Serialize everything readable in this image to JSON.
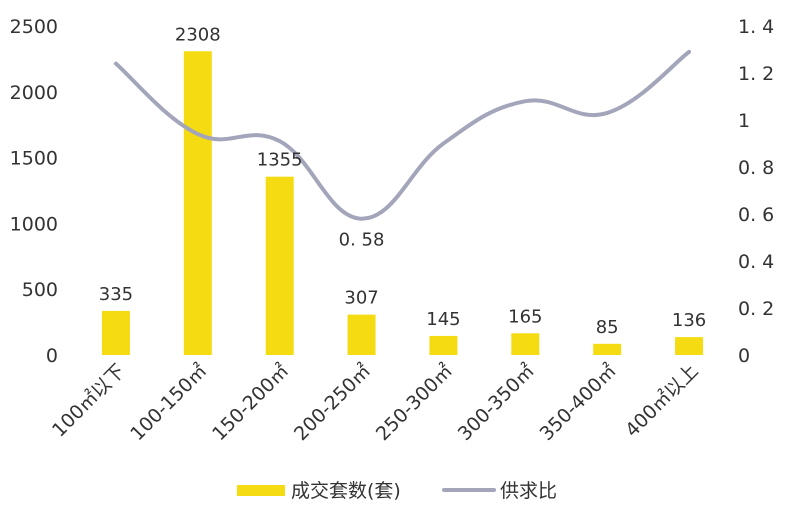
{
  "chart_data": {
    "type": "bar",
    "categories": [
      "100㎡以下",
      "100-150㎡",
      "150-200㎡",
      "200-250㎡",
      "250-300㎡",
      "300-350㎡",
      "350-400㎡",
      "400㎡以上"
    ],
    "series": [
      {
        "name": "成交套数(套)",
        "type": "bar",
        "axis": "left",
        "color": "#F5DC12",
        "values": [
          335,
          2308,
          1355,
          307,
          145,
          165,
          85,
          136
        ],
        "labels": [
          "335",
          "2308",
          "1355",
          "307",
          "145",
          "165",
          "85",
          "136"
        ]
      },
      {
        "name": "供求比",
        "type": "line",
        "axis": "right",
        "color": "#A3A6BA",
        "smooth": true,
        "values": [
          1.24,
          0.94,
          0.91,
          0.58,
          0.9,
          1.08,
          1.03,
          1.29
        ]
      }
    ],
    "annotations": [
      {
        "series": 1,
        "index": 3,
        "text": "0. 58"
      }
    ],
    "y_left": {
      "ylim": [
        0,
        2500
      ],
      "ticks": [
        0,
        500,
        1000,
        1500,
        2000,
        2500
      ],
      "tick_labels": [
        "0",
        "500",
        "1000",
        "1500",
        "2000",
        "2500"
      ]
    },
    "y_right": {
      "ylim": [
        0,
        1.4
      ],
      "ticks": [
        0,
        0.2,
        0.4,
        0.6,
        0.8,
        1,
        1.2,
        1.4
      ],
      "tick_labels": [
        "0",
        "0. 2",
        "0. 4",
        "0. 6",
        "0. 8",
        "1",
        "1. 2",
        "1. 4"
      ]
    },
    "grid": false,
    "legend": {
      "position": "bottom",
      "items": [
        "成交套数(套)",
        "供求比"
      ]
    }
  }
}
